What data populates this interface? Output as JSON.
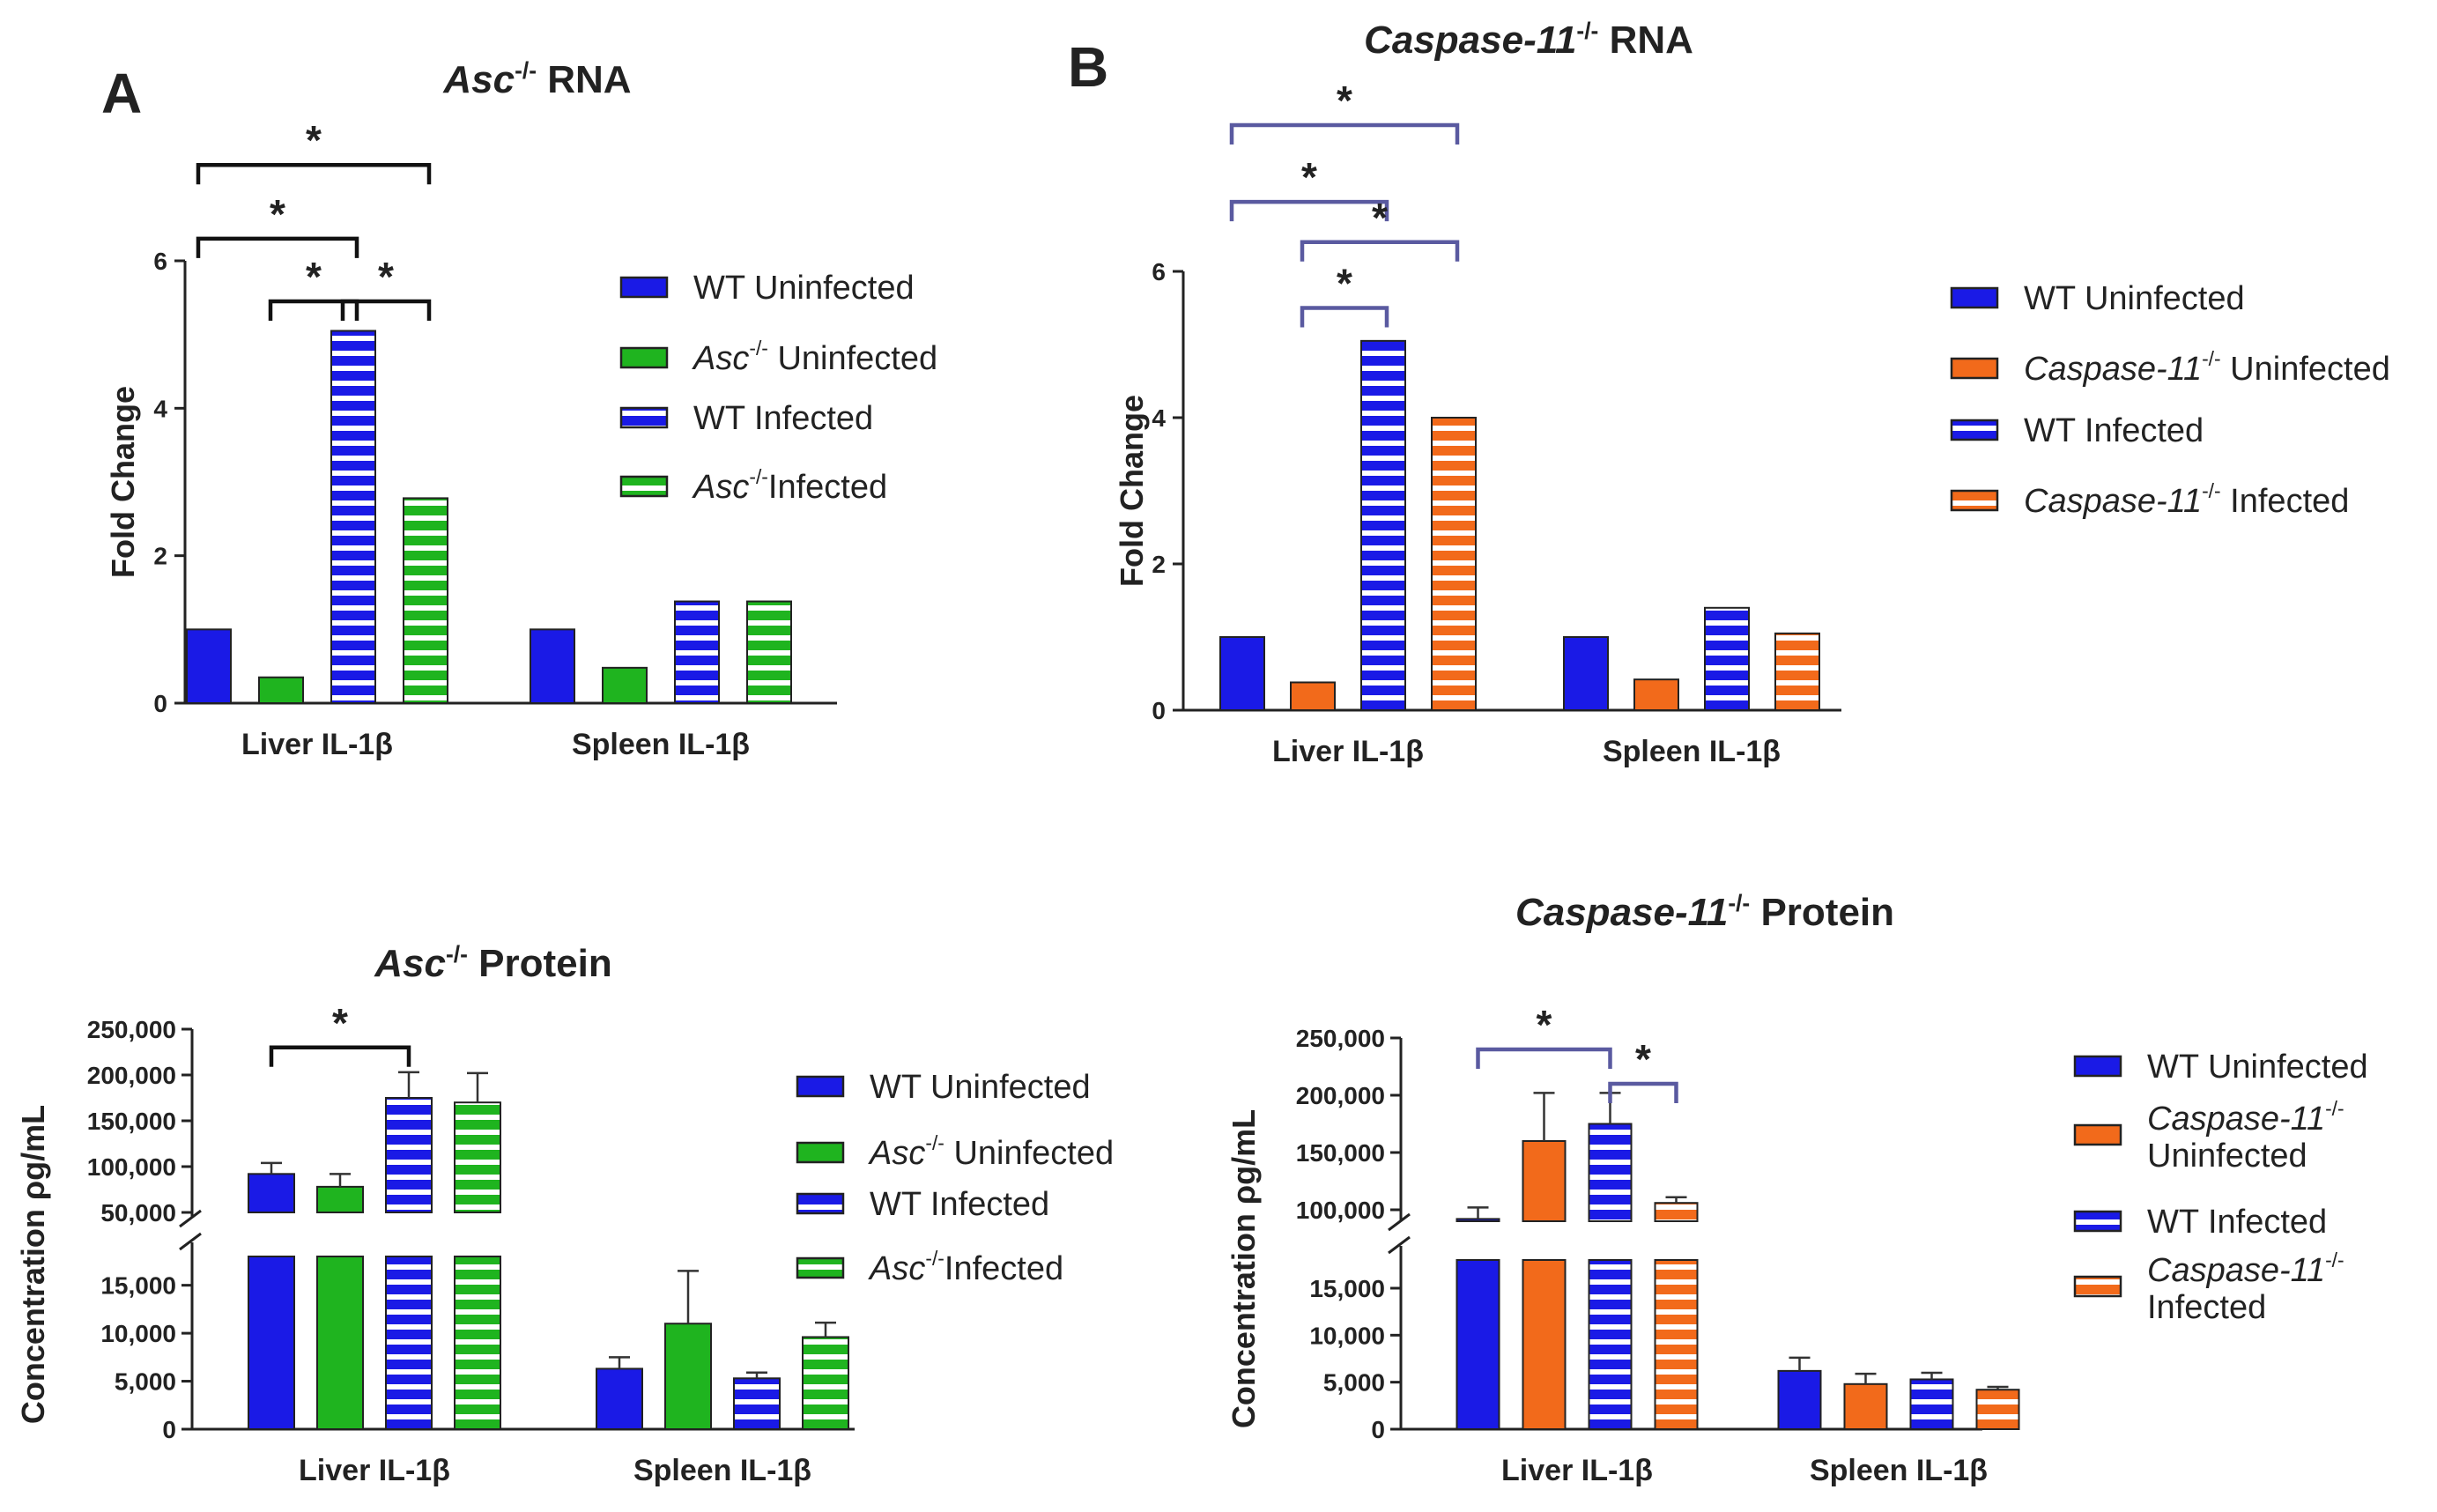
{
  "colors": {
    "wt": "#1a1ae6",
    "asc": "#1fb41f",
    "casp": "#f26a1b",
    "bracket_a": "#111111",
    "bracket_b": "#5a5aa0"
  },
  "chart_data": [
    {
      "id": "A_rna",
      "type": "bar",
      "panel_label": "A",
      "title_italic": "Asc",
      "title_sup": "-/-",
      "title_rest": " RNA",
      "ylabel": "Fold Change",
      "ylim": [
        0,
        6
      ],
      "yticks": [
        "0",
        "2",
        "4",
        "6"
      ],
      "categories": [
        "Liver IL-1β",
        "Spleen IL-1β"
      ],
      "series": [
        {
          "name": "WT Uninfected",
          "color": "wt",
          "striped": false,
          "values": [
            1.0,
            1.0
          ]
        },
        {
          "name_italic": "Asc",
          "name_sup": "-/-",
          "name_rest": " Uninfected",
          "color": "asc",
          "striped": false,
          "values": [
            0.35,
            0.48
          ]
        },
        {
          "name": "WT Infected",
          "color": "wt",
          "striped": true,
          "values": [
            5.05,
            1.38
          ]
        },
        {
          "name_italic": "Asc",
          "name_sup": "-/-",
          "name_rest": "Infected",
          "color": "asc",
          "striped": true,
          "values": [
            2.78,
            1.38
          ]
        }
      ],
      "brackets": [
        {
          "from_bar": 0,
          "to_bar": 3,
          "level": 7.3,
          "label": "*"
        },
        {
          "from_bar": 0,
          "to_bar": 2,
          "level": 6.3,
          "label": "*"
        },
        {
          "from_bar": 1,
          "to_bar": 2,
          "level": 5.45,
          "label": "*"
        },
        {
          "from_bar": 2,
          "to_bar": 3,
          "level": 5.45,
          "label": "*"
        }
      ]
    },
    {
      "id": "B_rna",
      "type": "bar",
      "panel_label": "B",
      "title_italic": "Caspase-11",
      "title_sup": "-/-",
      "title_rest": " RNA",
      "ylabel": "Fold Change",
      "ylim": [
        0,
        6
      ],
      "yticks": [
        "0",
        "2",
        "4",
        "6"
      ],
      "categories": [
        "Liver IL-1β",
        "Spleen IL-1β"
      ],
      "series": [
        {
          "name": "WT Uninfected",
          "color": "wt",
          "striped": false,
          "values": [
            1.0,
            1.0
          ]
        },
        {
          "name_italic": "Caspase-11",
          "name_sup": "-/-",
          "name_rest": " Uninfected",
          "color": "casp",
          "striped": false,
          "values": [
            0.38,
            0.42
          ]
        },
        {
          "name": "WT Infected",
          "color": "wt",
          "striped": true,
          "values": [
            5.05,
            1.4
          ]
        },
        {
          "name_italic": "Caspase-11",
          "name_sup": "-/-",
          "name_rest": " Infected",
          "color": "casp",
          "striped": true,
          "values": [
            4.0,
            1.05
          ]
        }
      ],
      "brackets": [
        {
          "from_bar": 0,
          "to_bar": 3,
          "level": 8.0,
          "label": "*"
        },
        {
          "from_bar": 0,
          "to_bar": 2,
          "level": 6.95,
          "label": "*"
        },
        {
          "from_bar": 1,
          "to_bar": 3,
          "level": 6.4,
          "label": "*"
        },
        {
          "from_bar": 1,
          "to_bar": 2,
          "level": 5.5,
          "label": "*"
        }
      ]
    },
    {
      "id": "A_protein",
      "type": "bar",
      "title_italic": "Asc",
      "title_sup": "-/-",
      "title_rest": " Protein",
      "ylabel": "Concentration ρg/mL",
      "broken_axis": true,
      "lower_range": [
        0,
        18000
      ],
      "upper_range": [
        50000,
        250000
      ],
      "yticks_lower": [
        {
          "v": 0,
          "t": "0"
        },
        {
          "v": 5000,
          "t": "5,000"
        },
        {
          "v": 10000,
          "t": "10,000"
        },
        {
          "v": 15000,
          "t": "15,000"
        }
      ],
      "yticks_upper": [
        {
          "v": 50000,
          "t": "50,000"
        },
        {
          "v": 100000,
          "t": "100,000"
        },
        {
          "v": 150000,
          "t": "150,000"
        },
        {
          "v": 200000,
          "t": "200,000"
        },
        {
          "v": 250000,
          "t": "250,000"
        }
      ],
      "categories": [
        "Liver IL-1β",
        "Spleen IL-1β"
      ],
      "series": [
        {
          "name": "WT Uninfected",
          "color": "wt",
          "striped": false,
          "values": [
            92000,
            6300
          ],
          "errors": [
            12000,
            1200
          ]
        },
        {
          "name_italic": "Asc",
          "name_sup": "-/-",
          "name_rest": " Uninfected",
          "color": "asc",
          "striped": false,
          "values": [
            78000,
            11000
          ],
          "errors": [
            14000,
            5500
          ]
        },
        {
          "name": "WT Infected",
          "color": "wt",
          "striped": true,
          "values": [
            175000,
            5300
          ],
          "errors": [
            28000,
            600
          ]
        },
        {
          "name_italic": "Asc",
          "name_sup": "-/-",
          "name_rest": "Infected",
          "color": "asc",
          "striped": true,
          "values": [
            170000,
            9600
          ],
          "errors": [
            32000,
            1500
          ]
        }
      ],
      "brackets": [
        {
          "from_bar": 0,
          "to_bar": 2,
          "level": 230000,
          "label": "*"
        }
      ]
    },
    {
      "id": "B_protein",
      "type": "bar",
      "title_italic": "Caspase-11",
      "title_sup": "-/-",
      "title_rest": " Protein",
      "ylabel": "Concentration ρg/mL",
      "broken_axis": true,
      "lower_range": [
        0,
        18000
      ],
      "upper_range": [
        90000,
        250000
      ],
      "yticks_lower": [
        {
          "v": 0,
          "t": "0"
        },
        {
          "v": 5000,
          "t": "5,000"
        },
        {
          "v": 10000,
          "t": "10,000"
        },
        {
          "v": 15000,
          "t": "15,000"
        }
      ],
      "yticks_upper": [
        {
          "v": 100000,
          "t": "100,000"
        },
        {
          "v": 150000,
          "t": "150,000"
        },
        {
          "v": 200000,
          "t": "200,000"
        },
        {
          "v": 250000,
          "t": "250,000"
        }
      ],
      "categories": [
        "Liver IL-1β",
        "Spleen IL-1β"
      ],
      "series": [
        {
          "name": "WT Uninfected",
          "color": "wt",
          "striped": false,
          "values": [
            92000,
            6200
          ],
          "errors": [
            10000,
            1400
          ]
        },
        {
          "name_italic": "Caspase-11",
          "name_sup": "-/-",
          "name_lines": [
            "Uninfected"
          ],
          "color": "casp",
          "striped": false,
          "values": [
            160000,
            4800
          ],
          "errors": [
            42000,
            1100
          ]
        },
        {
          "name": "WT Infected",
          "color": "wt",
          "striped": true,
          "values": [
            175000,
            5300
          ],
          "errors": [
            27000,
            700
          ]
        },
        {
          "name_italic": "Caspase-11",
          "name_sup": "-/-",
          "name_lines": [
            "Infected"
          ],
          "color": "casp",
          "striped": true,
          "values": [
            106000,
            4200
          ],
          "errors": [
            5000,
            300
          ]
        }
      ],
      "brackets": [
        {
          "from_bar": 0,
          "to_bar": 2,
          "level": 240000,
          "label": "*"
        },
        {
          "from_bar": 2,
          "to_bar": 3,
          "level": 210000,
          "label": "*"
        }
      ]
    }
  ]
}
